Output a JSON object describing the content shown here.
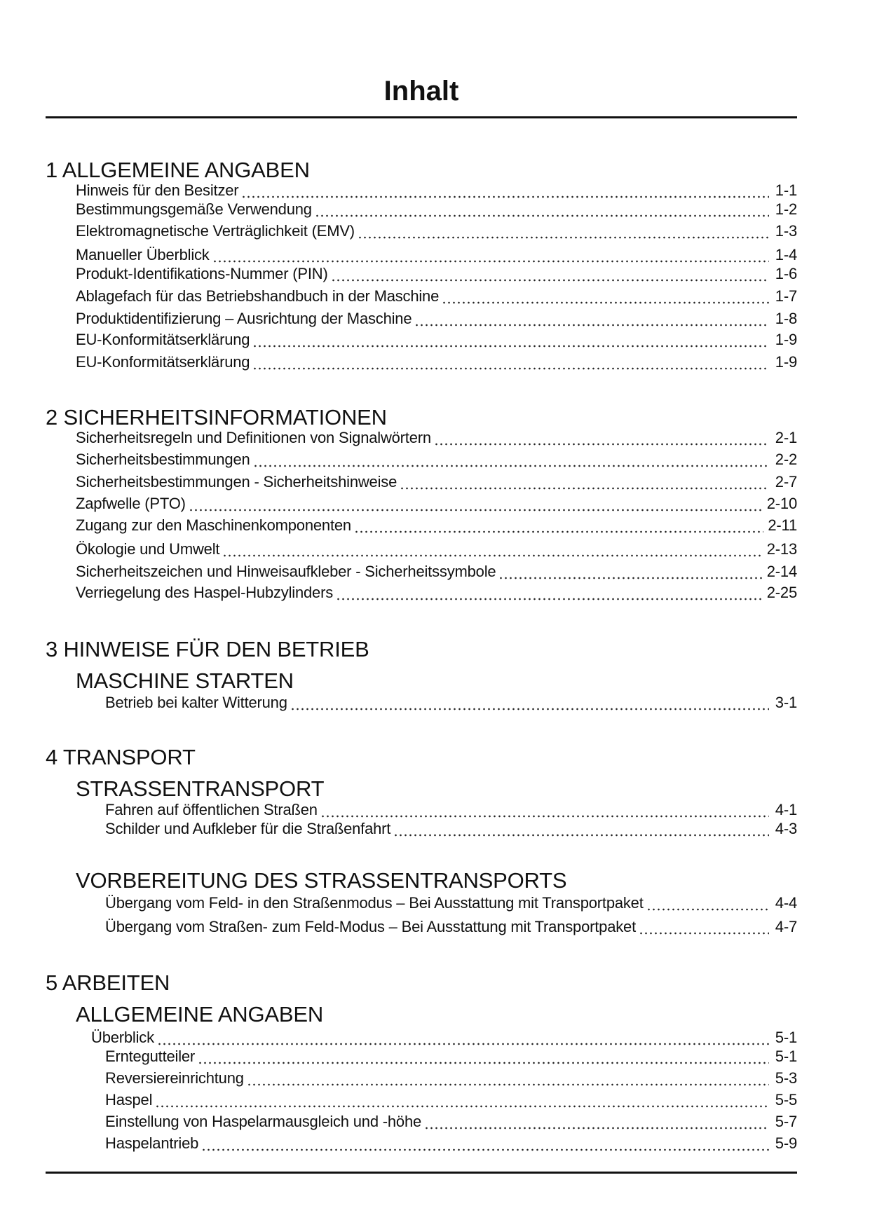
{
  "page_title": "Inhalt",
  "sections": [
    {
      "heading": "1 ALLGEMEINE ANGABEN",
      "entries": [
        {
          "text": "Hinweis für den Besitzer",
          "page": "1-1"
        },
        {
          "text": "Bestimmungsgemäße Verwendung",
          "page": "1-2"
        },
        {
          "text": "Elektromagnetische Verträglichkeit (EMV)",
          "page": "1-3"
        },
        {
          "text": "Manueller Überblick",
          "page": "1-4"
        },
        {
          "text": "Produkt-Identifikations-Nummer (PIN)",
          "page": "1-6"
        },
        {
          "text": "Ablagefach für das Betriebshandbuch in der Maschine",
          "page": "1-7"
        },
        {
          "text": "Produktidentifizierung – Ausrichtung der Maschine",
          "page": "1-8"
        },
        {
          "text": "EU-Konformitätserklärung",
          "page": "1-9"
        },
        {
          "text": "EU-Konformitätserklärung",
          "page": "1-9"
        }
      ]
    },
    {
      "heading": "2 SICHERHEITSINFORMATIONEN",
      "entries": [
        {
          "text": "Sicherheitsregeln und Definitionen von Signalwörtern",
          "page": "2-1"
        },
        {
          "text": "Sicherheitsbestimmungen",
          "page": "2-2"
        },
        {
          "text": "Sicherheitsbestimmungen - Sicherheitshinweise",
          "page": "2-7"
        },
        {
          "text": "Zapfwelle (PTO)",
          "page": "2-10"
        },
        {
          "text": "Zugang zur den Maschinenkomponenten",
          "page": "2-11"
        },
        {
          "text": "Ökologie und Umwelt",
          "page": "2-13"
        },
        {
          "text": "Sicherheitszeichen und Hinweisaufkleber - Sicherheitssymbole",
          "page": "2-14"
        },
        {
          "text": "Verriegelung des Haspel-Hubzylinders",
          "page": "2-25"
        }
      ]
    },
    {
      "heading": "3 HINWEISE FÜR DEN BETRIEB",
      "subsections": [
        {
          "heading": "MASCHINE STARTEN",
          "entries": [
            {
              "text": "Betrieb bei kalter Witterung",
              "page": "3-1"
            }
          ]
        }
      ]
    },
    {
      "heading": "4 TRANSPORT",
      "subsections": [
        {
          "heading": "STRASSENTRANSPORT",
          "entries": [
            {
              "text": "Fahren auf öffentlichen Straßen",
              "page": "4-1"
            },
            {
              "text": "Schilder und Aufkleber für die Straßenfahrt",
              "page": "4-3"
            }
          ]
        },
        {
          "heading": "VORBEREITUNG DES STRASSENTRANSPORTS",
          "entries": [
            {
              "text": "Übergang vom Feld- in den Straßenmodus – Bei Ausstattung mit Transportpaket",
              "page": "4-4"
            },
            {
              "text": "Übergang vom Straßen- zum Feld-Modus – Bei Ausstattung mit Transportpaket",
              "page": "4-7"
            }
          ]
        }
      ]
    },
    {
      "heading": "5 ARBEITEN",
      "subsections": [
        {
          "heading": "ALLGEMEINE ANGABEN",
          "entries": [
            {
              "text": "Überblick",
              "page": "5-1"
            },
            {
              "text": "Erntegutteiler",
              "page": "5-1"
            },
            {
              "text": "Reversiereinrichtung",
              "page": "5-3"
            },
            {
              "text": "Haspel",
              "page": "5-5"
            },
            {
              "text": "Einstellung von Haspelarmausgleich und -höhe",
              "page": "5-7"
            },
            {
              "text": "Haspelantrieb",
              "page": "5-9"
            }
          ]
        }
      ]
    }
  ]
}
